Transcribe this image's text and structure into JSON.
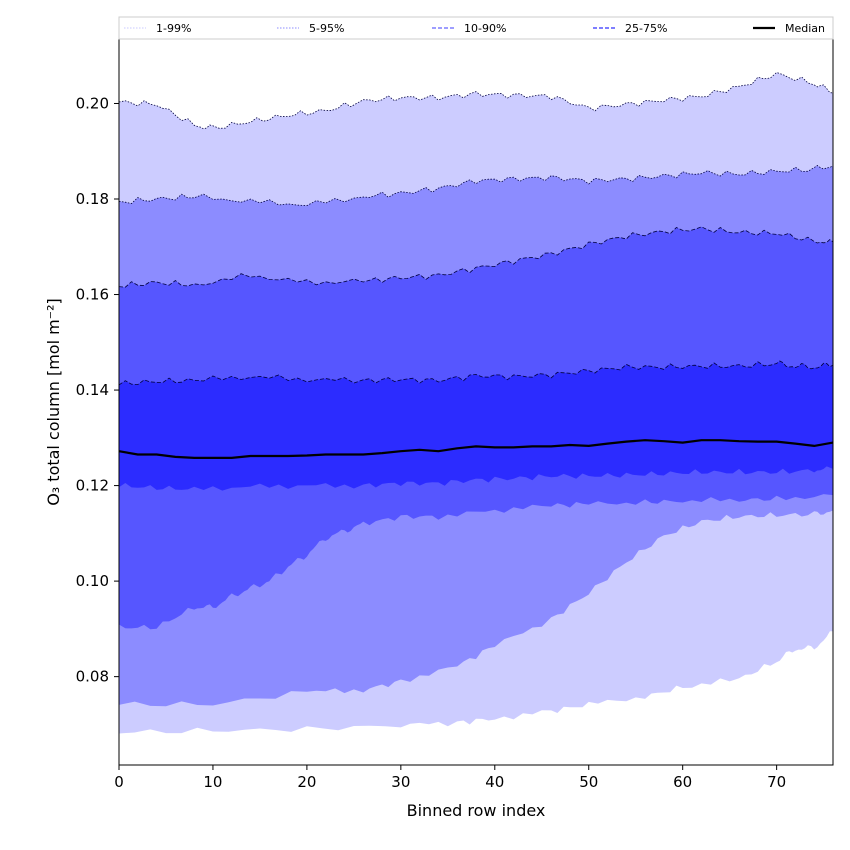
{
  "chart_data": {
    "type": "area",
    "title": "",
    "xlabel": "Binned row index",
    "ylabel": "O₃ total column [mol m⁻²]",
    "xlim": [
      0,
      76
    ],
    "ylim": [
      0.0615,
      0.2135
    ],
    "xticks": [
      0,
      10,
      20,
      30,
      40,
      50,
      60,
      70
    ],
    "yticks": [
      0.08,
      0.1,
      0.12,
      0.14,
      0.16,
      0.18,
      0.2
    ],
    "ytick_labels": [
      "0.08",
      "0.10",
      "0.12",
      "0.14",
      "0.16",
      "0.18",
      "0.20"
    ],
    "legend_position": "top",
    "bands": [
      {
        "name": "1-99%",
        "color": "#ccccff",
        "line_style": "dotted",
        "upper": {
          "x": [
            0,
            4,
            8,
            10,
            14,
            18,
            22,
            26,
            30,
            34,
            38,
            42,
            46,
            50,
            54,
            58,
            62,
            66,
            70,
            74,
            76
          ],
          "y": [
            0.2003,
            0.1998,
            0.1955,
            0.1948,
            0.1962,
            0.1975,
            0.1985,
            0.2005,
            0.2012,
            0.2012,
            0.202,
            0.2017,
            0.2015,
            0.199,
            0.1998,
            0.2007,
            0.2015,
            0.2035,
            0.2062,
            0.2042,
            0.2022
          ]
        },
        "lower": {
          "x": [
            0,
            10,
            20,
            30,
            36,
            40,
            46,
            50,
            56,
            60,
            66,
            70,
            72,
            74,
            76
          ],
          "y": [
            0.0683,
            0.0687,
            0.069,
            0.0698,
            0.0704,
            0.0712,
            0.0728,
            0.0742,
            0.0758,
            0.0778,
            0.0795,
            0.0832,
            0.0858,
            0.086,
            0.0895
          ]
        }
      },
      {
        "name": "5-95%",
        "color": "#8c8cff",
        "line_style": "dotted",
        "upper": {
          "x": [
            0,
            4,
            8,
            14,
            20,
            26,
            30,
            34,
            38,
            42,
            46,
            50,
            54,
            58,
            62,
            66,
            70,
            74,
            76
          ],
          "y": [
            0.1793,
            0.18,
            0.1805,
            0.1795,
            0.1788,
            0.1805,
            0.1812,
            0.1822,
            0.1838,
            0.1842,
            0.1845,
            0.1838,
            0.1842,
            0.1848,
            0.1855,
            0.1852,
            0.1858,
            0.1862,
            0.187
          ]
        },
        "lower": {
          "x": [
            0,
            10,
            20,
            26,
            30,
            36,
            40,
            46,
            50,
            54,
            58,
            62,
            66,
            70,
            74,
            76
          ],
          "y": [
            0.0742,
            0.0742,
            0.0768,
            0.0772,
            0.079,
            0.0822,
            0.0865,
            0.092,
            0.0975,
            0.104,
            0.1095,
            0.1125,
            0.1135,
            0.1138,
            0.114,
            0.1148
          ]
        }
      },
      {
        "name": "10-90%",
        "color": "#5656ff",
        "line_style": "dashed",
        "upper": {
          "x": [
            0,
            4,
            8,
            14,
            20,
            26,
            30,
            34,
            38,
            42,
            46,
            50,
            54,
            58,
            62,
            66,
            70,
            74,
            76
          ],
          "y": [
            0.1618,
            0.1625,
            0.162,
            0.164,
            0.1625,
            0.1628,
            0.1635,
            0.164,
            0.1655,
            0.167,
            0.1685,
            0.1705,
            0.1722,
            0.1732,
            0.1738,
            0.173,
            0.1728,
            0.1712,
            0.171
          ]
        },
        "lower": {
          "x": [
            0,
            4,
            8,
            10,
            12,
            14,
            16,
            18,
            20,
            22,
            24,
            26,
            30,
            34,
            40,
            46,
            50,
            56,
            60,
            66,
            70,
            76
          ],
          "y": [
            0.0903,
            0.0903,
            0.0945,
            0.0945,
            0.0968,
            0.0985,
            0.1,
            0.103,
            0.1055,
            0.109,
            0.1105,
            0.112,
            0.1135,
            0.1135,
            0.1148,
            0.1158,
            0.1162,
            0.1165,
            0.1168,
            0.117,
            0.1172,
            0.118
          ]
        }
      },
      {
        "name": "25-75%",
        "color": "#2c2cff",
        "line_style": "dashed",
        "upper": {
          "x": [
            0,
            4,
            8,
            14,
            20,
            26,
            30,
            34,
            38,
            42,
            46,
            50,
            54,
            58,
            62,
            66,
            70,
            72,
            74,
            76
          ],
          "y": [
            0.1413,
            0.1418,
            0.142,
            0.1428,
            0.1422,
            0.142,
            0.1422,
            0.142,
            0.143,
            0.1428,
            0.1432,
            0.144,
            0.1448,
            0.1448,
            0.145,
            0.145,
            0.1455,
            0.145,
            0.1448,
            0.1452
          ]
        },
        "lower": {
          "x": [
            0,
            4,
            8,
            14,
            20,
            26,
            30,
            34,
            38,
            42,
            46,
            50,
            54,
            58,
            62,
            66,
            70,
            74,
            76
          ],
          "y": [
            0.12,
            0.1195,
            0.1192,
            0.1198,
            0.12,
            0.12,
            0.1205,
            0.1205,
            0.1212,
            0.1215,
            0.122,
            0.122,
            0.1222,
            0.1225,
            0.1228,
            0.1228,
            0.1228,
            0.1232,
            0.1235
          ]
        }
      }
    ],
    "median": {
      "name": "Median",
      "color": "#000000",
      "x": [
        0,
        2,
        4,
        6,
        8,
        10,
        12,
        14,
        16,
        18,
        20,
        22,
        24,
        26,
        28,
        30,
        32,
        34,
        36,
        38,
        40,
        42,
        44,
        46,
        48,
        50,
        52,
        54,
        56,
        58,
        60,
        62,
        64,
        66,
        68,
        70,
        72,
        74,
        76
      ],
      "y": [
        0.1272,
        0.1265,
        0.1265,
        0.126,
        0.1258,
        0.1258,
        0.1258,
        0.1262,
        0.1262,
        0.1262,
        0.1263,
        0.1265,
        0.1265,
        0.1265,
        0.1268,
        0.1272,
        0.1275,
        0.1272,
        0.1278,
        0.1282,
        0.128,
        0.128,
        0.1282,
        0.1282,
        0.1285,
        0.1283,
        0.1288,
        0.1292,
        0.1295,
        0.1293,
        0.129,
        0.1295,
        0.1295,
        0.1293,
        0.1292,
        0.1292,
        0.1288,
        0.1283,
        0.129
      ]
    },
    "legend": [
      {
        "label": "1-99%",
        "color": "#c8c8ff",
        "style": "dotted"
      },
      {
        "label": "5-95%",
        "color": "#8c8cff",
        "style": "dotted"
      },
      {
        "label": "10-90%",
        "color": "#6464ff",
        "style": "dashed"
      },
      {
        "label": "25-75%",
        "color": "#3232ff",
        "style": "dashed"
      },
      {
        "label": "Median",
        "color": "#000000",
        "style": "solid"
      }
    ]
  }
}
